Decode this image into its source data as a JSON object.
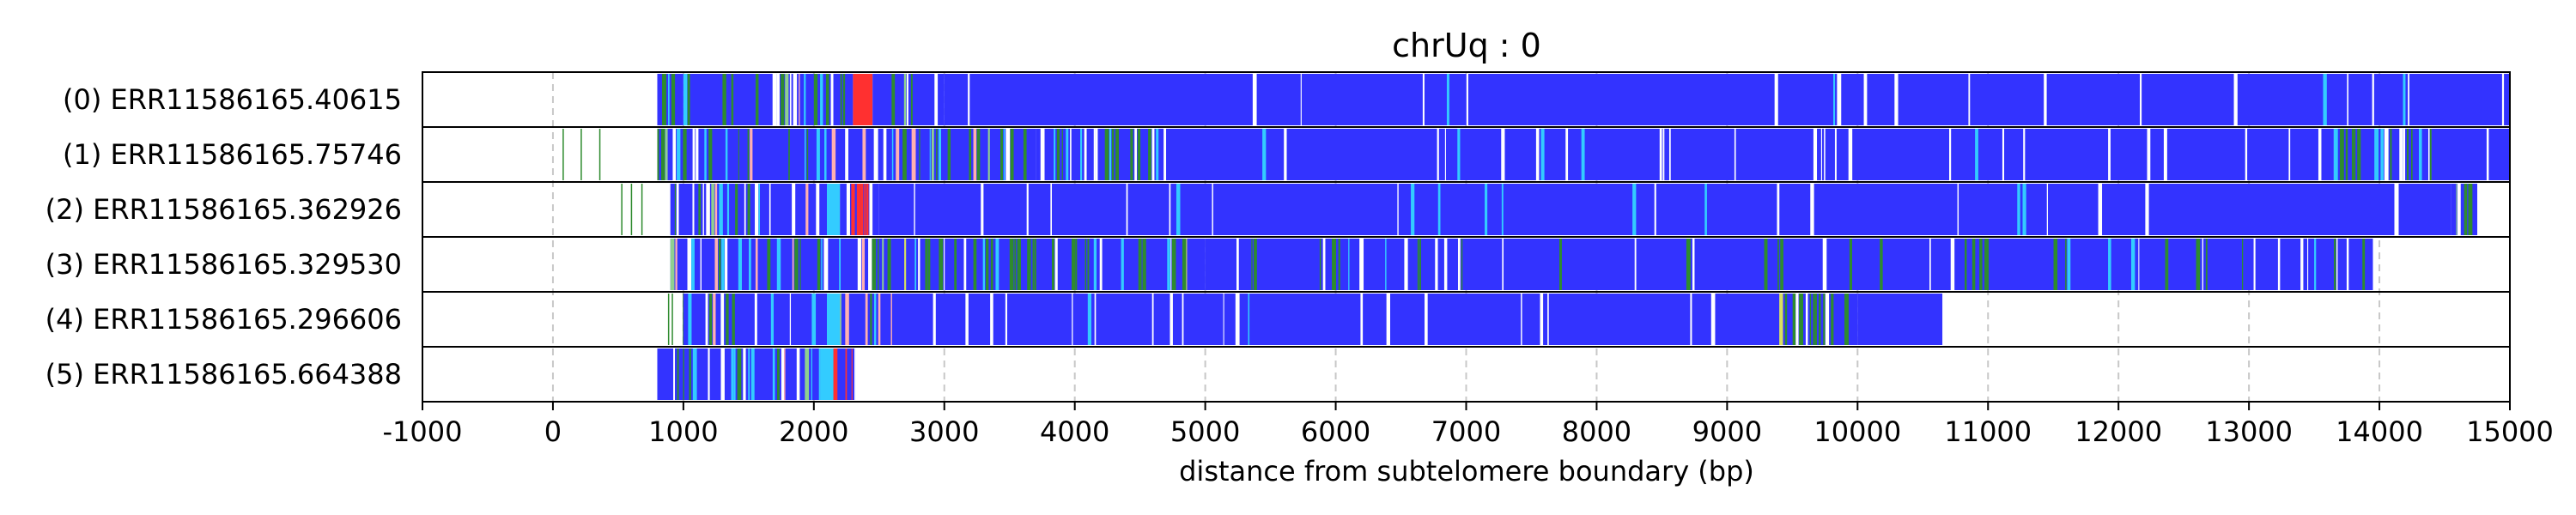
{
  "chart_data": {
    "type": "heatmap",
    "title": "chrUq : 0",
    "xlabel": "distance from subtelomere boundary (bp)",
    "ylabel": "",
    "xlim": [
      -1000,
      15000
    ],
    "x_ticks": [
      -1000,
      0,
      1000,
      2000,
      3000,
      4000,
      5000,
      6000,
      7000,
      8000,
      9000,
      10000,
      11000,
      12000,
      13000,
      14000,
      15000
    ],
    "x_tick_labels": [
      "-1000",
      "0",
      "1000",
      "2000",
      "3000",
      "4000",
      "5000",
      "6000",
      "7000",
      "8000",
      "9000",
      "10000",
      "11000",
      "12000",
      "13000",
      "14000",
      "15000"
    ],
    "grid": "vertical dashed at x ticks",
    "legend": "none",
    "colors": {
      "repeat_blue": "#3333ff",
      "green": "#2e8b2e",
      "cyan": "#33ccff",
      "red": "#ff3030",
      "white_gap": "#ffffff",
      "frame": "#000000",
      "grid": "#c8c8c8"
    },
    "reads": [
      {
        "label": "(0) ERR11586165.40615",
        "start": 800,
        "end": 15000,
        "segments": [
          [
            800,
            1000,
            "mixed"
          ],
          [
            1000,
            2300,
            "mixed"
          ],
          [
            2300,
            2450,
            "red"
          ],
          [
            2450,
            3000,
            "mixed"
          ],
          [
            3000,
            15000,
            "repeat_blue"
          ]
        ]
      },
      {
        "label": "(1) ERR11586165.75746",
        "start": 0,
        "end": 15000,
        "segments": [
          [
            0,
            800,
            "sparse_green"
          ],
          [
            800,
            3700,
            "mixed"
          ],
          [
            3700,
            4700,
            "cyan_white_mix"
          ],
          [
            4700,
            13650,
            "repeat_blue"
          ],
          [
            13650,
            14400,
            "cyan_white_mix"
          ],
          [
            14400,
            15000,
            "repeat_blue"
          ]
        ]
      },
      {
        "label": "(2) ERR11586165.362926",
        "start": 450,
        "end": 14750,
        "segments": [
          [
            450,
            900,
            "sparse_green"
          ],
          [
            900,
            2100,
            "mixed"
          ],
          [
            2100,
            2200,
            "cyan"
          ],
          [
            2200,
            2500,
            "red_mix"
          ],
          [
            2500,
            14550,
            "repeat_blue"
          ],
          [
            14550,
            14750,
            "mixed"
          ]
        ]
      },
      {
        "label": "(3) ERR11586165.329530",
        "start": 900,
        "end": 13950,
        "segments": [
          [
            900,
            2600,
            "mixed"
          ],
          [
            2600,
            5000,
            "green_mix"
          ],
          [
            5000,
            13950,
            "repeat_blue_green"
          ]
        ]
      },
      {
        "label": "(4) ERR11586165.296606",
        "start": 700,
        "end": 10650,
        "segments": [
          [
            700,
            1000,
            "sparse_green"
          ],
          [
            1000,
            2100,
            "mixed"
          ],
          [
            2100,
            2200,
            "cyan"
          ],
          [
            2200,
            2600,
            "mixed"
          ],
          [
            2600,
            9400,
            "repeat_blue"
          ],
          [
            9400,
            10000,
            "green_mix"
          ],
          [
            10000,
            10650,
            "repeat_blue"
          ]
        ]
      },
      {
        "label": "(5) ERR11586165.664388",
        "start": 800,
        "end": 2320,
        "segments": [
          [
            800,
            2050,
            "mixed"
          ],
          [
            2050,
            2150,
            "cyan"
          ],
          [
            2150,
            2320,
            "red_mix"
          ]
        ]
      }
    ]
  }
}
